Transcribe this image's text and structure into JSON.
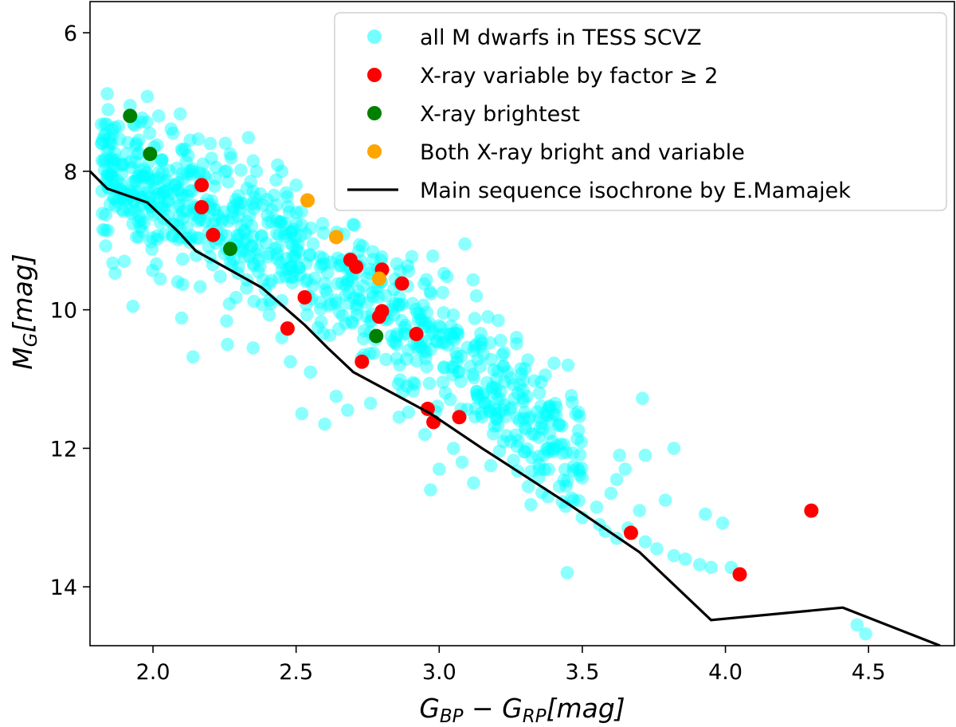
{
  "chart_data": {
    "type": "scatter",
    "xlabel": "G_BP − G_RP[mag]",
    "ylabel": "M_G[mag]",
    "xlabel_parts": {
      "main": "G",
      "sub1": "BP",
      "minus": " − G",
      "sub2": "RP",
      "unit": "[mag]"
    },
    "ylabel_parts": {
      "main": "M",
      "sub": "G",
      "unit": "[mag]"
    },
    "xlim": [
      1.78,
      4.8
    ],
    "ylim": [
      14.85,
      5.55
    ],
    "y_inverted": true,
    "xticks": [
      2.0,
      2.5,
      3.0,
      3.5,
      4.0,
      4.5
    ],
    "xtick_labels": [
      "2.0",
      "2.5",
      "3.0",
      "3.5",
      "4.0",
      "4.5"
    ],
    "yticks": [
      6,
      8,
      10,
      12,
      14
    ],
    "ytick_labels": [
      "6",
      "8",
      "10",
      "12",
      "14"
    ],
    "grid": false,
    "legend_position": "top-right",
    "legend": [
      {
        "label": "all M dwarfs in TESS SCVZ",
        "color": "#00ffff",
        "kind": "marker"
      },
      {
        "label": "X-ray variable by factor ≥ 2",
        "color": "#ff0000",
        "kind": "marker"
      },
      {
        "label": "X-ray brightest",
        "color": "#008000",
        "kind": "marker"
      },
      {
        "label": "Both X-ray bright and variable",
        "color": "#ffa500",
        "kind": "marker"
      },
      {
        "label": "Main sequence isochrone by E.Mamajek",
        "color": "#000000",
        "kind": "line"
      }
    ],
    "series": [
      {
        "name": "all M dwarfs in TESS SCVZ",
        "color": "#00ffff",
        "opacity": 0.45,
        "generated_cloud": {
          "count": 820,
          "seed": 7,
          "x_range": [
            1.82,
            3.5
          ],
          "spine": [
            [
              1.8,
              7.95
            ],
            [
              2.0,
              8.3
            ],
            [
              2.3,
              8.85
            ],
            [
              2.6,
              9.45
            ],
            [
              2.9,
              10.2
            ],
            [
              3.2,
              11.2
            ],
            [
              3.5,
              12.3
            ]
          ],
          "spread_above": 0.85,
          "spread_below": 0.9
        },
        "points": [
          [
            1.84,
            6.88
          ],
          [
            1.92,
            7.05
          ],
          [
            1.95,
            7.55
          ],
          [
            1.98,
            6.92
          ],
          [
            1.88,
            7.35
          ],
          [
            2.02,
            7.2
          ],
          [
            2.07,
            7.45
          ],
          [
            2.13,
            7.55
          ],
          [
            2.2,
            7.6
          ],
          [
            2.27,
            7.75
          ],
          [
            2.35,
            7.85
          ],
          [
            2.45,
            8.0
          ],
          [
            2.5,
            8.2
          ],
          [
            3.09,
            9.05
          ],
          [
            3.13,
            9.8
          ],
          [
            3.17,
            10.1
          ],
          [
            3.22,
            10.65
          ],
          [
            3.27,
            10.4
          ],
          [
            3.3,
            10.85
          ],
          [
            3.2,
            11.0
          ],
          [
            3.35,
            11.2
          ],
          [
            3.45,
            10.8
          ],
          [
            3.4,
            11.5
          ],
          [
            3.28,
            11.6
          ],
          [
            3.25,
            11.9
          ],
          [
            3.3,
            12.05
          ],
          [
            3.18,
            12.25
          ],
          [
            3.35,
            12.3
          ],
          [
            3.42,
            12.55
          ],
          [
            3.47,
            12.75
          ],
          [
            3.38,
            12.7
          ],
          [
            3.55,
            12.85
          ],
          [
            3.5,
            13.0
          ],
          [
            3.56,
            13.1
          ],
          [
            3.6,
            12.65
          ],
          [
            3.62,
            12.45
          ],
          [
            3.65,
            12.3
          ],
          [
            3.63,
            12.1
          ],
          [
            3.58,
            13.2
          ],
          [
            3.62,
            13.3
          ],
          [
            3.66,
            13.15
          ],
          [
            3.72,
            13.35
          ],
          [
            3.7,
            12.9
          ],
          [
            3.79,
            12.75
          ],
          [
            3.76,
            13.45
          ],
          [
            3.82,
            13.55
          ],
          [
            3.86,
            13.6
          ],
          [
            3.91,
            13.68
          ],
          [
            3.95,
            13.72
          ],
          [
            3.93,
            12.95
          ],
          [
            3.99,
            13.08
          ],
          [
            4.02,
            13.72
          ],
          [
            4.46,
            14.55
          ],
          [
            4.49,
            14.68
          ],
          [
            1.9,
            9.3
          ],
          [
            1.93,
            9.95
          ],
          [
            2.1,
            10.12
          ],
          [
            2.14,
            10.68
          ],
          [
            2.26,
            10.5
          ],
          [
            2.35,
            10.55
          ],
          [
            2.45,
            10.4
          ],
          [
            2.64,
            11.25
          ],
          [
            2.52,
            11.5
          ],
          [
            2.6,
            11.65
          ],
          [
            3.71,
            11.28
          ],
          [
            3.82,
            12.0
          ],
          [
            3.72,
            12.1
          ],
          [
            2.55,
            10.9
          ],
          [
            2.48,
            10.75
          ],
          [
            2.68,
            11.45
          ],
          [
            2.76,
            11.35
          ],
          [
            2.86,
            11.55
          ],
          [
            2.95,
            11.8
          ],
          [
            3.05,
            12.0
          ],
          [
            3.0,
            12.3
          ],
          [
            2.97,
            12.6
          ],
          [
            3.12,
            12.5
          ],
          [
            3.08,
            12.2
          ]
        ]
      },
      {
        "name": "X-ray variable by factor ≥ 2",
        "color": "#ff0000",
        "points": [
          [
            2.17,
            8.2
          ],
          [
            2.17,
            8.52
          ],
          [
            2.21,
            8.92
          ],
          [
            2.53,
            9.82
          ],
          [
            2.47,
            10.27
          ],
          [
            2.69,
            9.28
          ],
          [
            2.71,
            9.38
          ],
          [
            2.8,
            9.42
          ],
          [
            2.87,
            9.62
          ],
          [
            2.79,
            10.1
          ],
          [
            2.8,
            10.02
          ],
          [
            2.92,
            10.35
          ],
          [
            2.73,
            10.75
          ],
          [
            2.96,
            11.43
          ],
          [
            2.98,
            11.62
          ],
          [
            3.07,
            11.55
          ],
          [
            3.67,
            13.22
          ],
          [
            4.05,
            13.82
          ],
          [
            4.3,
            12.9
          ]
        ]
      },
      {
        "name": "X-ray brightest",
        "color": "#008000",
        "points": [
          [
            1.92,
            7.2
          ],
          [
            1.99,
            7.75
          ],
          [
            2.27,
            9.12
          ],
          [
            2.78,
            10.38
          ]
        ]
      },
      {
        "name": "Both X-ray bright and variable",
        "color": "#ffa500",
        "points": [
          [
            2.54,
            8.42
          ],
          [
            2.64,
            8.95
          ],
          [
            2.79,
            9.55
          ]
        ]
      },
      {
        "name": "Main sequence isochrone by E.Mamajek",
        "color": "#000000",
        "kind": "line",
        "points": [
          [
            1.78,
            8.0
          ],
          [
            1.84,
            8.25
          ],
          [
            1.98,
            8.45
          ],
          [
            2.09,
            8.88
          ],
          [
            2.15,
            9.15
          ],
          [
            2.38,
            9.68
          ],
          [
            2.53,
            10.22
          ],
          [
            2.61,
            10.55
          ],
          [
            2.7,
            10.9
          ],
          [
            2.97,
            11.5
          ],
          [
            3.15,
            12.0
          ],
          [
            3.45,
            12.8
          ],
          [
            3.7,
            13.5
          ],
          [
            3.95,
            14.48
          ],
          [
            4.41,
            14.3
          ],
          [
            4.75,
            14.85
          ]
        ]
      }
    ]
  }
}
